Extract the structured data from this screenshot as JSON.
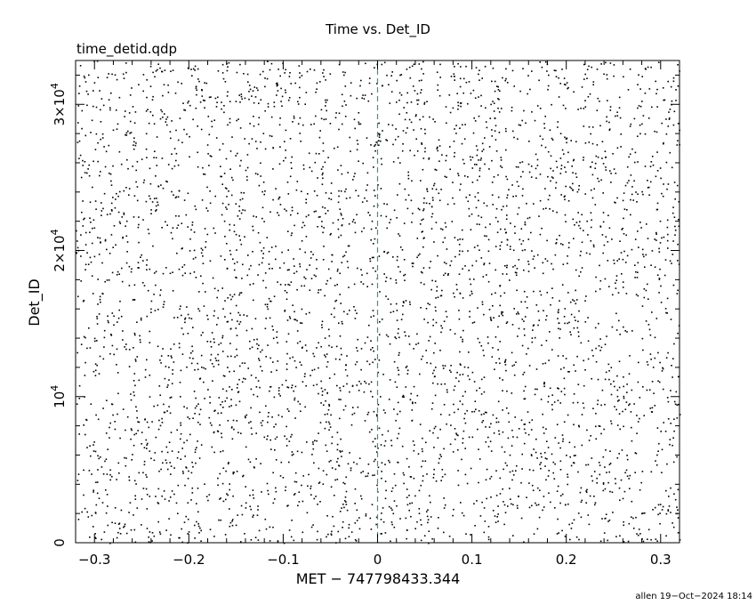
{
  "chart_data": {
    "type": "scatter",
    "title": "Time vs. Det_ID",
    "subtitle": "time_detid.qdp",
    "xlabel": "MET − 747798433.344",
    "ylabel": "Det_ID",
    "footer": "allen 19−Oct−2024 18:14",
    "xlim": [
      -0.32,
      0.32
    ],
    "ylim": [
      0,
      33000
    ],
    "x_ticks": [
      {
        "value": -0.3,
        "label": "−0.3"
      },
      {
        "value": -0.2,
        "label": "−0.2"
      },
      {
        "value": -0.1,
        "label": "−0.1"
      },
      {
        "value": 0,
        "label": "0"
      },
      {
        "value": 0.1,
        "label": "0.1"
      },
      {
        "value": 0.2,
        "label": "0.2"
      },
      {
        "value": 0.3,
        "label": "0.3"
      }
    ],
    "y_ticks": [
      {
        "value": 0,
        "base": "0",
        "exp": ""
      },
      {
        "value": 10000,
        "base": "10",
        "exp": "4"
      },
      {
        "value": 20000,
        "base": "2×10",
        "exp": "4"
      },
      {
        "value": 30000,
        "base": "3×10",
        "exp": "4"
      }
    ],
    "reference_line": {
      "x": 0,
      "color": "#2e9a9a",
      "style": "dashed"
    },
    "point_color": "#000000",
    "grid": false,
    "legend": "none",
    "series": [
      {
        "points_generated": true,
        "x_range": [
          -0.32,
          0.32
        ],
        "y_range": [
          0,
          33000
        ],
        "count": 4200
      }
    ]
  }
}
